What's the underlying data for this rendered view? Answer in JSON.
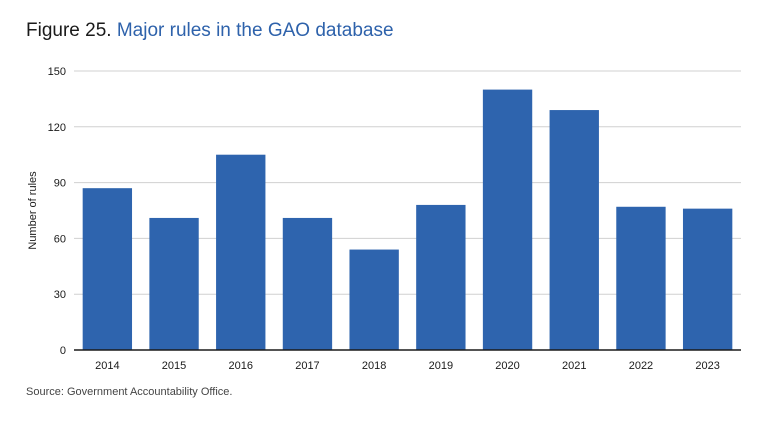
{
  "header": {
    "figure_label": "Figure 25.",
    "title": "Major rules in the GAO database"
  },
  "source": "Source: Government Accountability Office.",
  "colors": {
    "bar": "#2e64ae",
    "title_accent": "#2e62ab",
    "grid": "#d0d0d0"
  },
  "chart_data": {
    "type": "bar",
    "title": "Major rules in the GAO database",
    "xlabel": "",
    "ylabel": "Number of rules",
    "categories": [
      "2014",
      "2015",
      "2016",
      "2017",
      "2018",
      "2019",
      "2020",
      "2021",
      "2022",
      "2023"
    ],
    "values": [
      87,
      71,
      105,
      71,
      54,
      78,
      140,
      129,
      77,
      76
    ],
    "ylim": [
      0,
      150
    ],
    "yticks": [
      0,
      30,
      60,
      90,
      120,
      150
    ],
    "grid": true
  }
}
